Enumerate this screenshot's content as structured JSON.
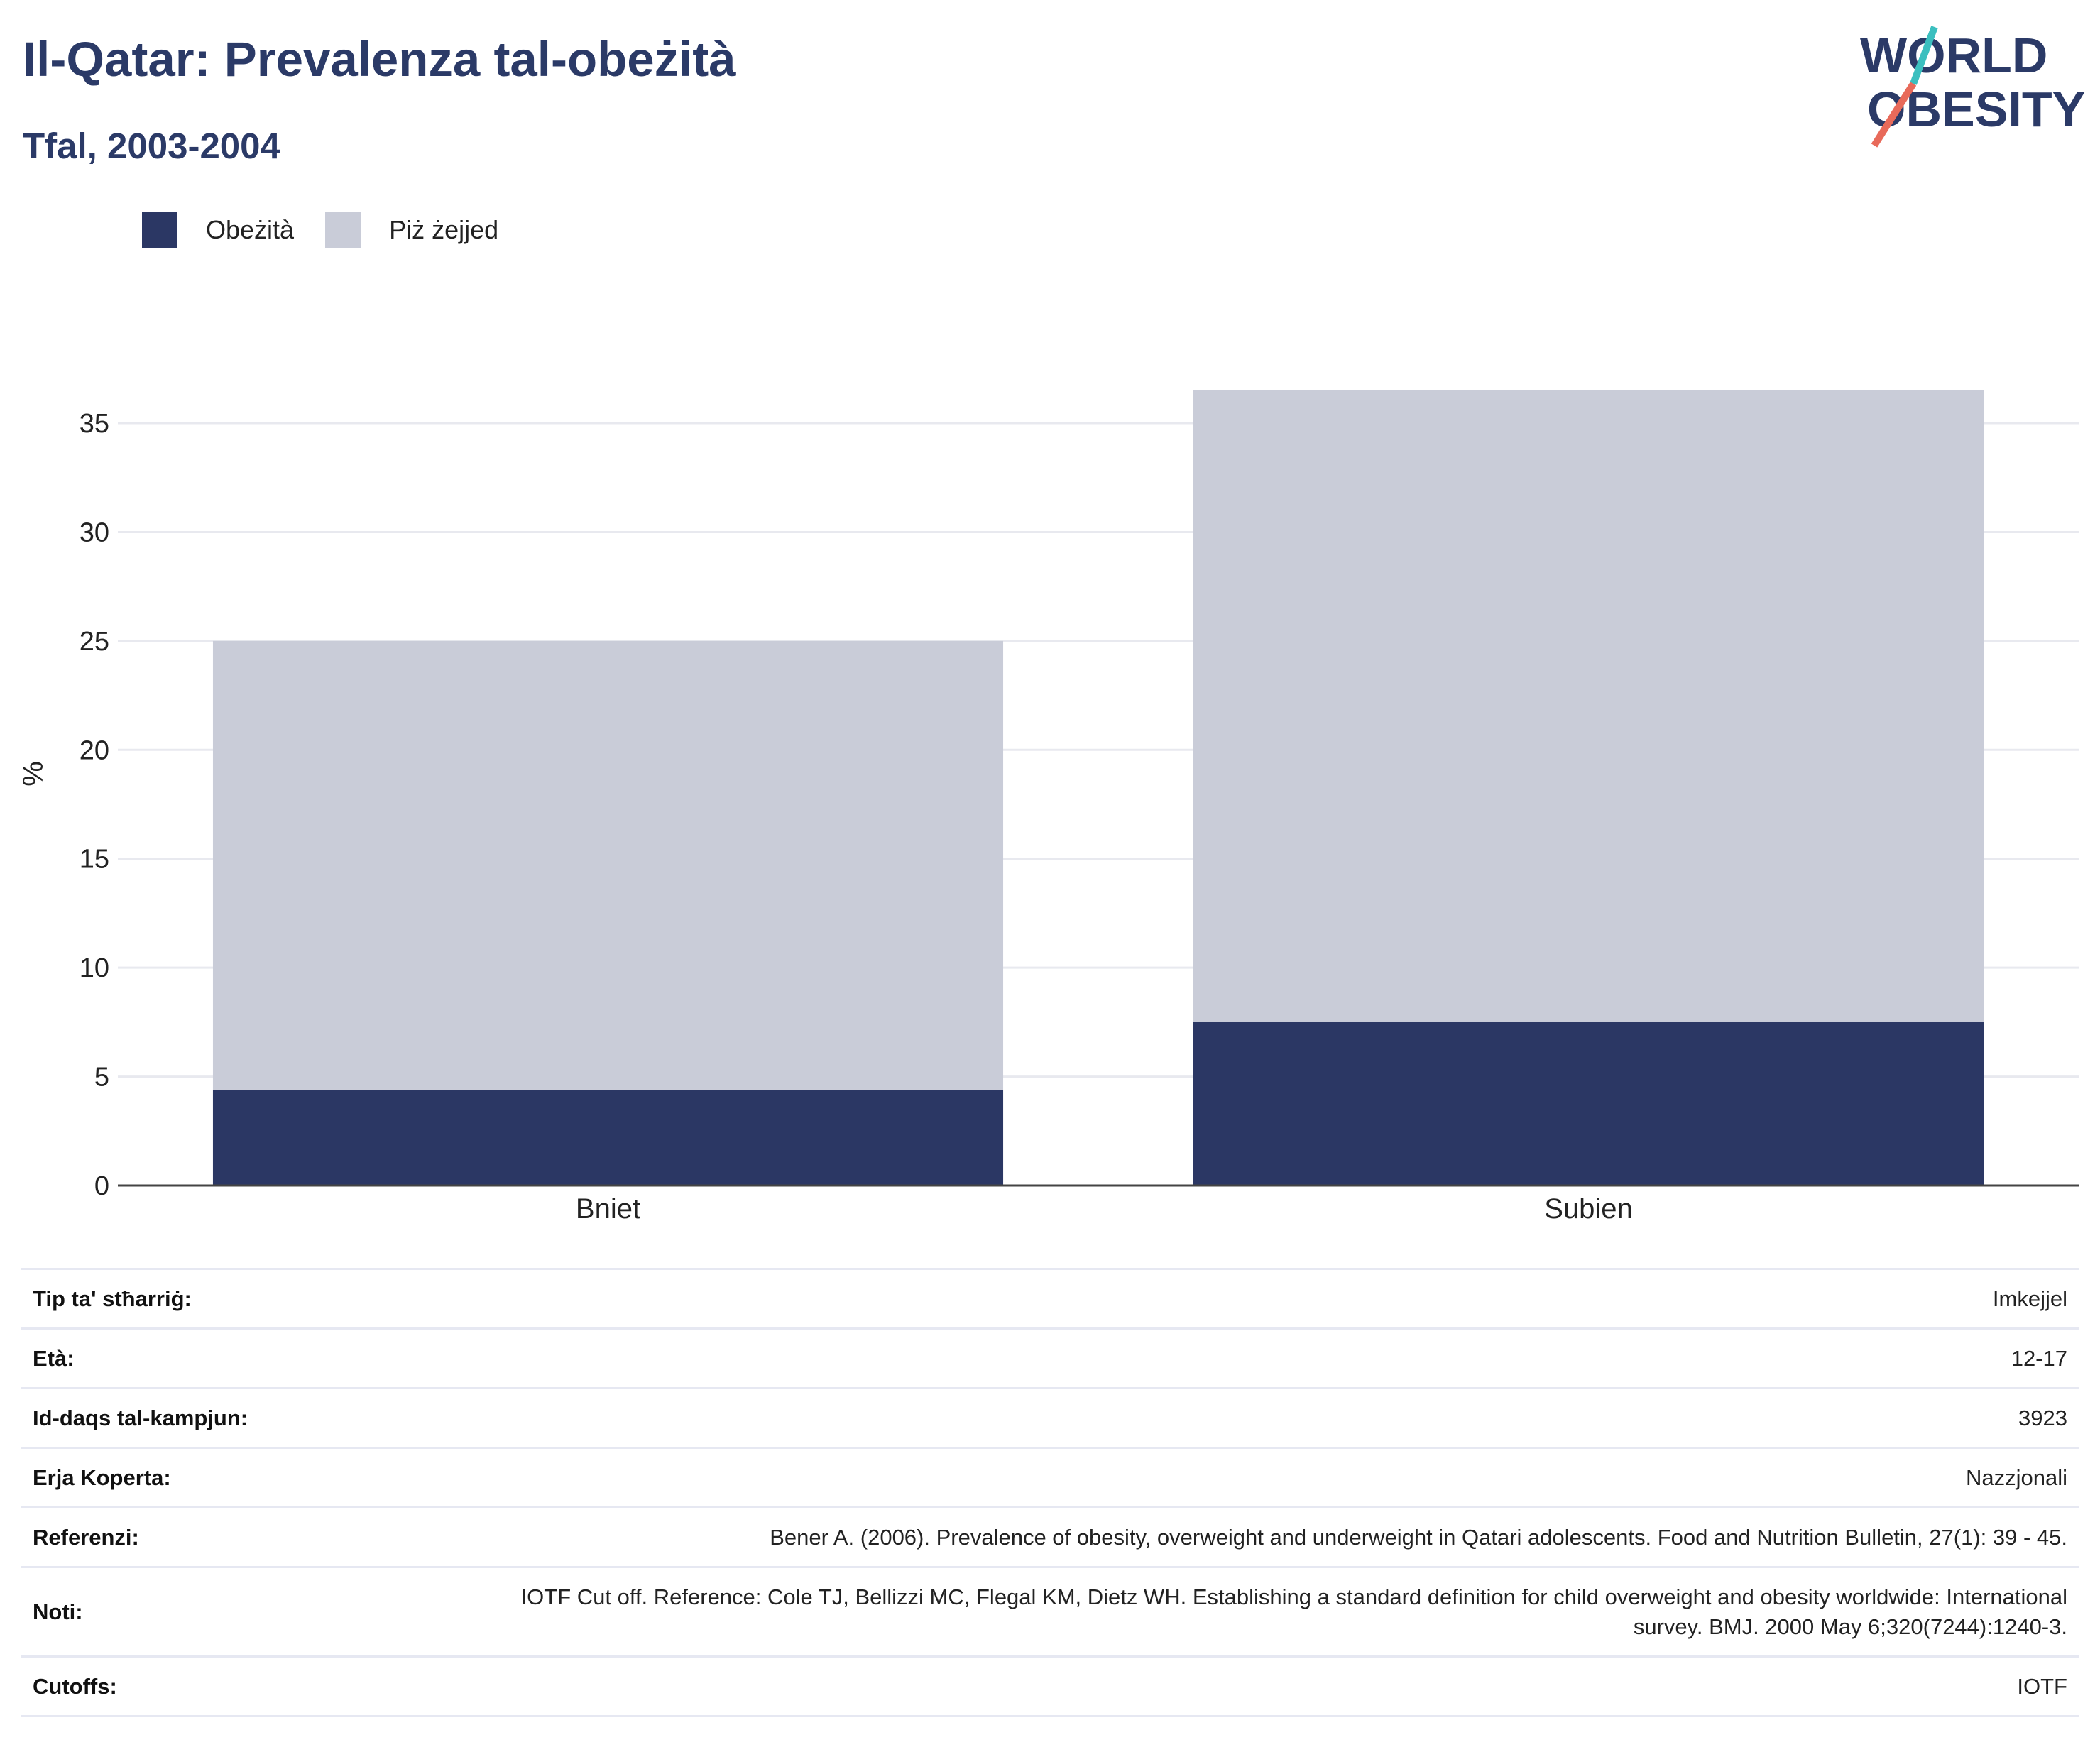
{
  "header": {
    "title": "Il-Qatar: Prevalenza tal-obeżità",
    "subtitle": "Tfal, 2003-2004"
  },
  "logo": {
    "line1": "WORLD",
    "line2": "OBESITY",
    "colors": {
      "text": "#2b3a67",
      "slash_top": "#3bbfbf",
      "slash_bottom": "#e86a5a"
    }
  },
  "legend": [
    {
      "label": "Obeżità",
      "color": "#2b3764"
    },
    {
      "label": "Piż żejjed",
      "color": "#c9ccd8"
    }
  ],
  "chart_data": {
    "type": "bar",
    "stacked": true,
    "categories": [
      "Bniet",
      "Subien"
    ],
    "series": [
      {
        "name": "Obeżità",
        "values": [
          4.4,
          7.5
        ],
        "color": "#2b3764"
      },
      {
        "name": "Piż żejjed",
        "values": [
          20.6,
          29.0
        ],
        "color": "#c9ccd8"
      }
    ],
    "ylabel": "%",
    "ylim": [
      0,
      36.5
    ],
    "yticks": [
      0,
      5,
      10,
      15,
      20,
      25,
      30,
      35
    ],
    "grid": true,
    "legend_position": "top-left"
  },
  "info": [
    {
      "key": "Tip ta' stħarriġ:",
      "value": "Imkejjel"
    },
    {
      "key": "Età:",
      "value": "12-17"
    },
    {
      "key": "Id-daqs tal-kampjun:",
      "value": "3923"
    },
    {
      "key": "Erja Koperta:",
      "value": "Nazzjonali"
    },
    {
      "key": "Referenzi:",
      "value": "Bener A. (2006). Prevalence of obesity, overweight and underweight in Qatari adolescents. Food and Nutrition Bulletin, 27(1): 39 - 45."
    },
    {
      "key": "Noti:",
      "value": "IOTF Cut off. Reference: Cole TJ, Bellizzi MC, Flegal KM, Dietz WH. Establishing a standard definition for child overweight and obesity worldwide: International survey. BMJ. 2000 May 6;320(7244):1240-3."
    },
    {
      "key": "Cutoffs:",
      "value": "IOTF"
    }
  ]
}
